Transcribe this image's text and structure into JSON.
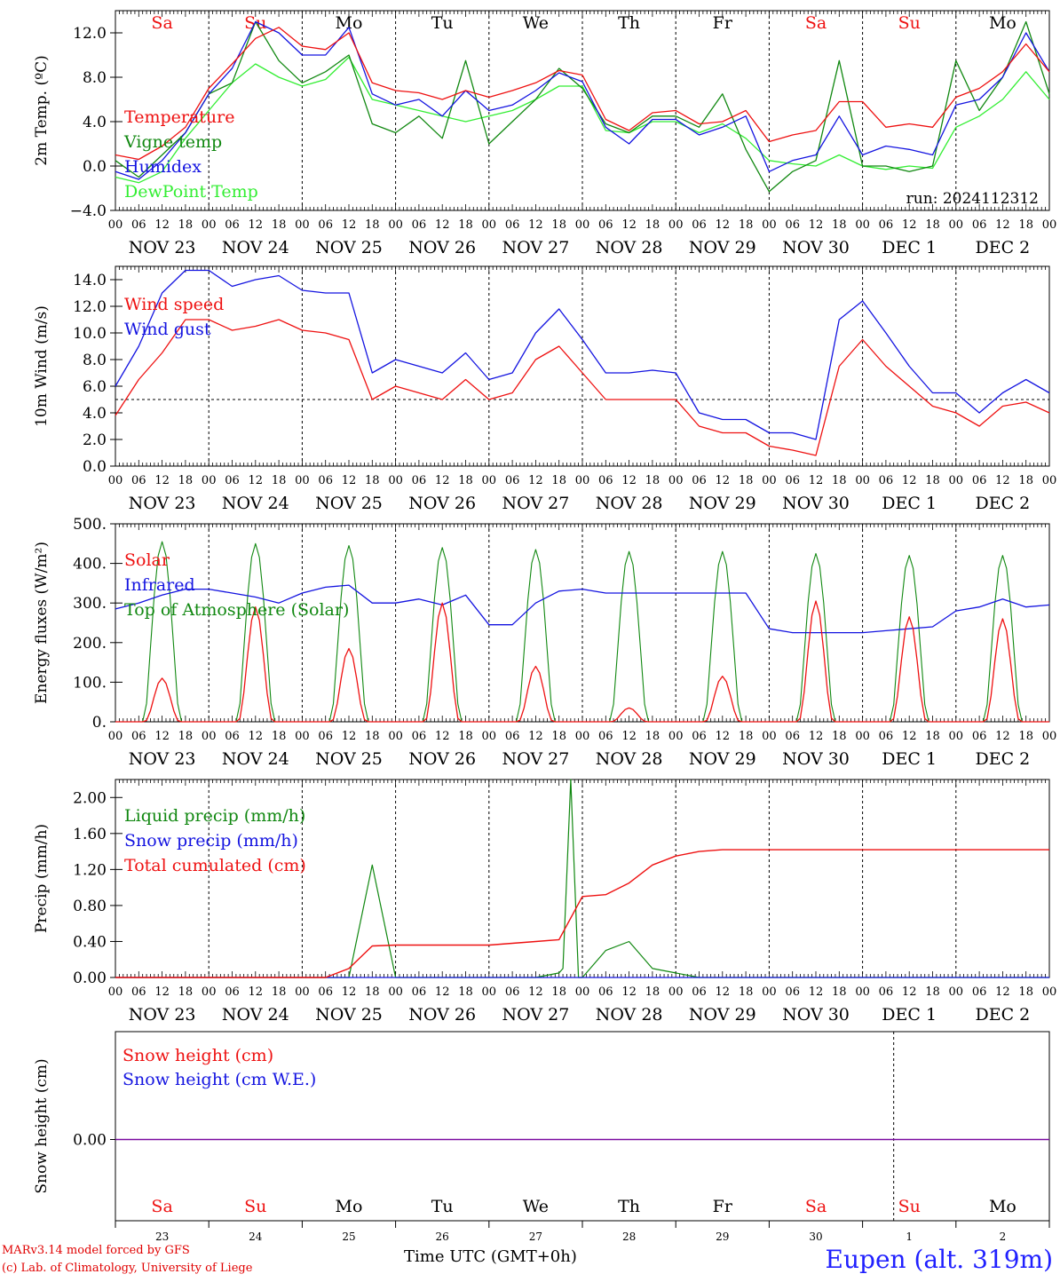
{
  "run": "run: 2024112312",
  "colors": {
    "red": "#ee1111",
    "green": "#118811",
    "blue": "#1414e0",
    "lightgreen": "#33ee33",
    "purple": "#7a0aa0"
  },
  "hour_ticks": [
    "00",
    "06",
    "12",
    "18"
  ],
  "date_labels": [
    "NOV 23",
    "NOV 24",
    "NOV 25",
    "NOV 26",
    "NOV 27",
    "NOV 28",
    "NOV 29",
    "NOV 30",
    "DEC  1",
    "DEC  2"
  ],
  "day_names": [
    "Sa",
    "Su",
    "Mo",
    "Tu",
    "We",
    "Th",
    "Fr",
    "Sa",
    "Su",
    "Mo"
  ],
  "day_name_colors": [
    "red",
    "red",
    "black",
    "black",
    "black",
    "black",
    "black",
    "red",
    "red",
    "black"
  ],
  "day_numbers": [
    "23",
    "24",
    "25",
    "26",
    "27",
    "28",
    "29",
    "30",
    "1",
    "2"
  ],
  "footer": {
    "credit_line1": "MARv3.14 model forced by GFS",
    "credit_line2": "(c) Lab. of Climatology, University of Liege",
    "time_label": "Time UTC (GMT+0h)",
    "location": "Eupen (alt. 319m)"
  },
  "chart_data": [
    {
      "type": "line",
      "ylabel": "2m Temp. (ºC)",
      "ylim": [
        -4,
        14
      ],
      "yticks": [
        "−4.0",
        "0.0",
        "4.0",
        "8.0",
        "12.0"
      ],
      "ytick_values": [
        -4,
        0,
        4,
        8,
        12
      ],
      "x_hours": [
        0,
        6,
        12,
        18,
        24,
        30,
        36,
        42,
        48,
        54,
        60,
        66,
        72,
        78,
        84,
        90,
        96,
        102,
        108,
        114,
        120,
        126,
        132,
        138,
        144,
        150,
        156,
        162,
        168,
        174,
        180,
        186,
        192,
        198,
        204,
        210,
        216,
        222,
        228,
        234,
        240
      ],
      "series": [
        {
          "name": "Temperature",
          "color": "red",
          "values": [
            1.0,
            0.6,
            1.8,
            3.5,
            7.0,
            9.2,
            11.5,
            12.5,
            10.8,
            10.5,
            12.0,
            7.5,
            6.8,
            6.6,
            6.0,
            6.8,
            6.2,
            6.8,
            7.5,
            8.6,
            8.2,
            4.2,
            3.2,
            4.8,
            5.0,
            3.8,
            4.0,
            5.0,
            2.2,
            2.8,
            3.2,
            5.8,
            5.8,
            3.5,
            3.8,
            3.5,
            6.2,
            7.0,
            8.5,
            11.0,
            8.5
          ]
        },
        {
          "name": "Vigne temp",
          "color": "green",
          "values": [
            0.5,
            -1.0,
            1.0,
            3.0,
            6.5,
            7.5,
            13.0,
            9.5,
            7.5,
            8.5,
            10.0,
            3.8,
            3.0,
            4.5,
            2.5,
            9.5,
            2.0,
            4.0,
            6.0,
            8.8,
            7.0,
            3.8,
            3.0,
            4.5,
            4.5,
            3.5,
            6.5,
            1.5,
            -2.3,
            -0.5,
            0.5,
            9.5,
            0.0,
            0.0,
            -0.5,
            0.0,
            9.5,
            5.0,
            8.0,
            13.0,
            6.5
          ]
        },
        {
          "name": "Humidex",
          "color": "blue",
          "values": [
            -0.5,
            -1.2,
            0.5,
            3.0,
            6.5,
            8.8,
            13.0,
            12.0,
            10.0,
            10.0,
            12.5,
            6.5,
            5.5,
            6.0,
            4.5,
            6.8,
            5.0,
            5.5,
            6.8,
            8.4,
            7.6,
            3.5,
            2.0,
            4.2,
            4.2,
            2.8,
            3.5,
            4.5,
            -0.5,
            0.5,
            1.0,
            4.5,
            1.0,
            1.8,
            1.5,
            1.0,
            5.5,
            6.0,
            8.0,
            12.0,
            8.5
          ]
        },
        {
          "name": "DewPoint Temp",
          "color": "lightgreen",
          "values": [
            -1.0,
            -1.5,
            -0.5,
            2.5,
            5.0,
            7.5,
            9.2,
            8.0,
            7.2,
            7.8,
            9.8,
            6.0,
            5.5,
            5.0,
            4.5,
            4.0,
            4.5,
            5.0,
            6.0,
            7.2,
            7.2,
            3.2,
            3.0,
            4.0,
            4.0,
            3.0,
            3.8,
            2.5,
            0.5,
            0.2,
            0.0,
            1.0,
            0.0,
            -0.3,
            0.0,
            -0.2,
            3.5,
            4.5,
            6.0,
            8.5,
            6.0
          ]
        }
      ]
    },
    {
      "type": "line",
      "ylabel": "10m Wind (m/s)",
      "ylim": [
        0,
        15
      ],
      "yticks": [
        "0.0",
        "2.0",
        "4.0",
        "6.0",
        "8.0",
        "10.0",
        "12.0",
        "14.0"
      ],
      "ytick_values": [
        0,
        2,
        4,
        6,
        8,
        10,
        12,
        14
      ],
      "reference_line": 5,
      "x_hours": [
        0,
        6,
        12,
        18,
        24,
        30,
        36,
        42,
        48,
        54,
        60,
        66,
        72,
        78,
        84,
        90,
        96,
        102,
        108,
        114,
        120,
        126,
        132,
        138,
        144,
        150,
        156,
        162,
        168,
        174,
        180,
        186,
        192,
        198,
        204,
        210,
        216,
        222,
        228,
        234,
        240
      ],
      "series": [
        {
          "name": "Wind speed",
          "color": "red",
          "values": [
            3.8,
            6.5,
            8.5,
            11.0,
            11.0,
            10.2,
            10.5,
            11.0,
            10.2,
            10.0,
            9.5,
            5.0,
            6.0,
            5.5,
            5.0,
            6.5,
            5.0,
            5.5,
            8.0,
            9.0,
            7.0,
            5.0,
            5.0,
            5.0,
            5.0,
            3.0,
            2.5,
            2.5,
            1.5,
            1.2,
            0.8,
            7.5,
            9.5,
            7.5,
            6.0,
            4.5,
            4.0,
            3.0,
            4.5,
            4.8,
            4.0
          ]
        },
        {
          "name": "Wind gust",
          "color": "blue",
          "values": [
            6.0,
            9.0,
            13.0,
            14.7,
            14.7,
            13.5,
            14.0,
            14.3,
            13.2,
            13.0,
            13.0,
            7.0,
            8.0,
            7.5,
            7.0,
            8.5,
            6.5,
            7.0,
            10.0,
            11.8,
            9.5,
            7.0,
            7.0,
            7.2,
            7.0,
            4.0,
            3.5,
            3.5,
            2.5,
            2.5,
            2.0,
            11.0,
            12.4,
            10.0,
            7.5,
            5.5,
            5.5,
            4.0,
            5.5,
            6.5,
            5.5
          ]
        }
      ]
    },
    {
      "type": "line",
      "ylabel": "Energy fluxes (W/m²)",
      "ylim": [
        0,
        500
      ],
      "yticks": [
        "0.",
        "100.",
        "200.",
        "300.",
        "400.",
        "500."
      ],
      "ytick_values": [
        0,
        100,
        200,
        300,
        400,
        500
      ],
      "x_hours": [
        0,
        6,
        12,
        18,
        24,
        30,
        36,
        42,
        48,
        54,
        60,
        66,
        72,
        78,
        84,
        90,
        96,
        102,
        108,
        114,
        120,
        126,
        132,
        138,
        144,
        150,
        156,
        162,
        168,
        174,
        180,
        186,
        192,
        198,
        204,
        210,
        216,
        222,
        228,
        234,
        240
      ],
      "series": [
        {
          "name": "Solar",
          "color": "red",
          "day_peaks": [
            110,
            290,
            185,
            300,
            140,
            35,
            115,
            305,
            265,
            260
          ]
        },
        {
          "name": "Infrared",
          "color": "blue",
          "values": [
            285,
            300,
            320,
            335,
            335,
            325,
            315,
            300,
            325,
            340,
            345,
            300,
            300,
            310,
            295,
            320,
            245,
            245,
            300,
            330,
            335,
            325,
            325,
            325,
            325,
            325,
            325,
            325,
            235,
            225,
            225,
            225,
            225,
            230,
            235,
            240,
            280,
            290,
            310,
            290,
            295
          ]
        },
        {
          "name": "Top of Atmosphere (Solar)",
          "color": "green",
          "day_peaks": [
            455,
            450,
            445,
            440,
            435,
            430,
            430,
            425,
            420,
            420
          ]
        }
      ]
    },
    {
      "type": "line",
      "ylabel": "Precip (mm/h)",
      "ylim": [
        0,
        2.2
      ],
      "yticks": [
        "0.00",
        "0.40",
        "0.80",
        "1.20",
        "1.60",
        "2.00"
      ],
      "ytick_values": [
        0,
        0.4,
        0.8,
        1.2,
        1.6,
        2.0
      ],
      "x_hours": [
        0,
        6,
        12,
        18,
        24,
        30,
        36,
        42,
        48,
        54,
        60,
        66,
        72,
        78,
        84,
        90,
        96,
        102,
        108,
        114,
        120,
        126,
        132,
        138,
        144,
        150,
        156,
        162,
        168,
        174,
        180,
        186,
        192,
        198,
        204,
        210,
        216,
        222,
        228,
        234,
        240
      ],
      "series": [
        {
          "name": "Liquid precip (mm/h)",
          "color": "green",
          "values": [
            0,
            0,
            0,
            0,
            0,
            0,
            0,
            0,
            0,
            0,
            0,
            1.25,
            0,
            0,
            0,
            0,
            0,
            0,
            0,
            0.05,
            0,
            0.3,
            0.4,
            0.1,
            0.05,
            0,
            0,
            0,
            0,
            0,
            0,
            0,
            0,
            0,
            0,
            0,
            0,
            0,
            0,
            0,
            0
          ]
        },
        {
          "name": "Snow precip (mm/h)",
          "color": "blue",
          "values": [
            0,
            0,
            0,
            0,
            0,
            0,
            0,
            0,
            0,
            0,
            0,
            0,
            0,
            0,
            0,
            0,
            0,
            0,
            0,
            0,
            0,
            0,
            0,
            0,
            0,
            0,
            0,
            0,
            0,
            0,
            0,
            0,
            0,
            0,
            0,
            0,
            0,
            0,
            0,
            0,
            0
          ]
        },
        {
          "name": "Total cumulated (cm)",
          "color": "red",
          "values": [
            0,
            0,
            0,
            0,
            0,
            0,
            0,
            0,
            0,
            0,
            0.1,
            0.35,
            0.36,
            0.36,
            0.36,
            0.36,
            0.36,
            0.38,
            0.4,
            0.42,
            0.9,
            0.92,
            1.05,
            1.25,
            1.35,
            1.4,
            1.42,
            1.42,
            1.42,
            1.42,
            1.42,
            1.42,
            1.42,
            1.42,
            1.42,
            1.42,
            1.42,
            1.42,
            1.42,
            1.42,
            1.42
          ]
        }
      ],
      "spike": {
        "hour": 117,
        "value": 2.2
      }
    },
    {
      "type": "line",
      "ylabel": "Snow height (cm)",
      "yticks": [
        "0.00"
      ],
      "series": [
        {
          "name": "Snow height (cm)",
          "color": "red",
          "values": [
            0
          ]
        },
        {
          "name": "Snow height (cm W.E.)",
          "color": "blue",
          "values": [
            0
          ]
        }
      ]
    }
  ]
}
